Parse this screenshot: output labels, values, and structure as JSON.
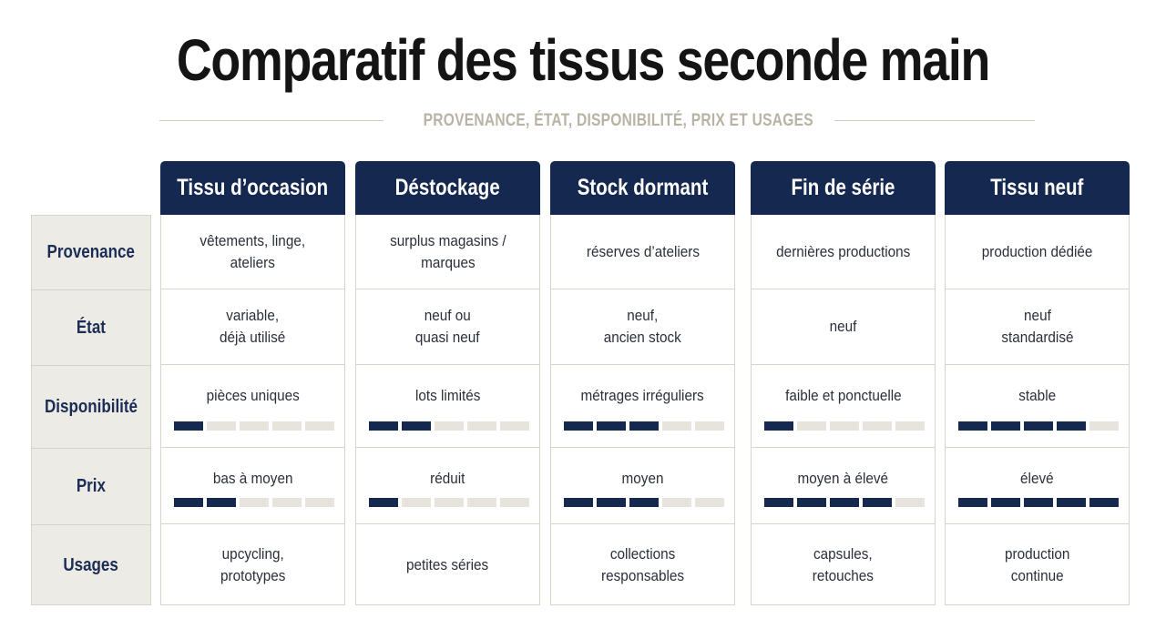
{
  "title": "Comparatif des tissus seconde main",
  "subtitle": "PROVENANCE, ÉTAT, DISPONIBILITÉ, PRIX ET USAGES",
  "colors": {
    "navy": "#15284f",
    "bar_off": "#e6e4dc",
    "row_head_bg": "#ecebe5"
  },
  "rows": [
    "Provenance",
    "État",
    "Disponibilité",
    "Prix",
    "Usages"
  ],
  "columns": [
    {
      "name": "Tissu d’occasion",
      "provenance": "vêtements, linge,\nateliers",
      "etat": "variable,\ndéjà utilisé",
      "disponibilite": {
        "label": "pièces uniques",
        "level": 1
      },
      "prix": {
        "label": "bas à moyen",
        "level": 2
      },
      "usages": "upcycling,\nprototypes"
    },
    {
      "name": "Déstockage",
      "provenance": "surplus magasins /\nmarques",
      "etat": "neuf ou\nquasi neuf",
      "disponibilite": {
        "label": "lots limités",
        "level": 2
      },
      "prix": {
        "label": "réduit",
        "level": 1
      },
      "usages": "petites séries"
    },
    {
      "name": "Stock dormant",
      "provenance": "réserves d’ateliers",
      "etat": "neuf,\nancien stock",
      "disponibilite": {
        "label": "métrages irréguliers",
        "level": 3
      },
      "prix": {
        "label": "moyen",
        "level": 3
      },
      "usages": "collections\nresponsables"
    },
    {
      "name": "Fin de série",
      "provenance": "dernières productions",
      "etat": "neuf",
      "disponibilite": {
        "label": "faible et ponctuelle",
        "level": 1
      },
      "prix": {
        "label": "moyen à élevé",
        "level": 4
      },
      "usages": "capsules,\nretouches"
    },
    {
      "name": "Tissu neuf",
      "provenance": "production dédiée",
      "etat": "neuf\nstandardisé",
      "disponibilite": {
        "label": "stable",
        "level": 4
      },
      "prix": {
        "label": "élevé",
        "level": 5
      },
      "usages": "production\ncontinue"
    }
  ]
}
